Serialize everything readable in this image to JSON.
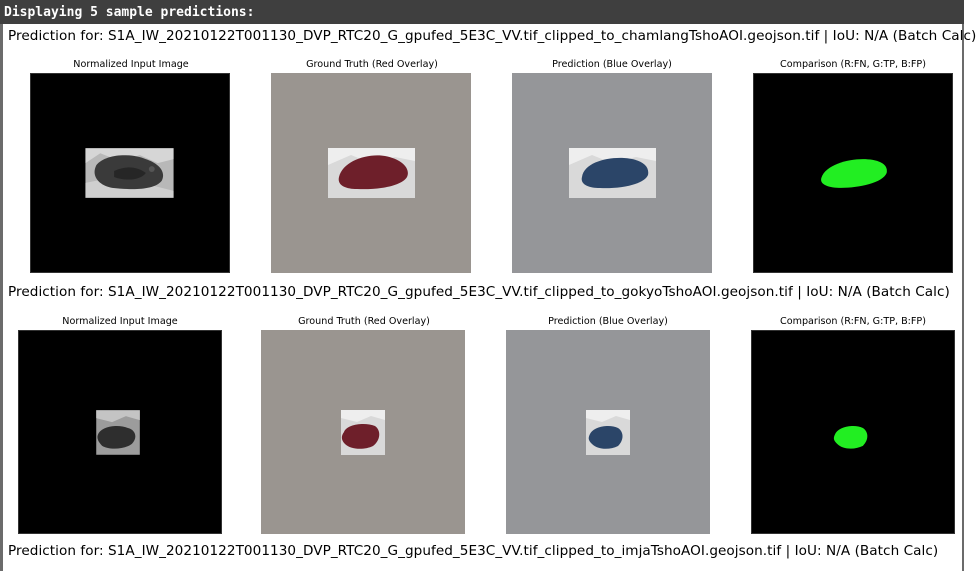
{
  "console": {
    "header": "Displaying 5 sample predictions:"
  },
  "predictions": [
    {
      "title": "Prediction for: S1A_IW_20210122T001130_DVP_RTC20_G_gpufed_5E3C_VV.tif_clipped_to_chamlangTshoAOI.geojson.tif | IoU: N/A (Batch Calc)",
      "panels": [
        {
          "label": "Normalized Input Image"
        },
        {
          "label": "Ground Truth (Red Overlay)"
        },
        {
          "label": "Prediction (Blue Overlay)"
        },
        {
          "label": "Comparison (R:FN, G:TP, B:FP)"
        }
      ]
    },
    {
      "title": "Prediction for: S1A_IW_20210122T001130_DVP_RTC20_G_gpufed_5E3C_VV.tif_clipped_to_gokyoTshoAOI.geojson.tif | IoU: N/A (Batch Calc)",
      "panels": [
        {
          "label": "Normalized Input Image"
        },
        {
          "label": "Ground Truth (Red Overlay)"
        },
        {
          "label": "Prediction (Blue Overlay)"
        },
        {
          "label": "Comparison (R:FN, G:TP, B:FP)"
        }
      ]
    },
    {
      "title": "Prediction for: S1A_IW_20210122T001130_DVP_RTC20_G_gpufed_5E3C_VV.tif_clipped_to_imjaTshoAOI.geojson.tif | IoU: N/A (Batch Calc)"
    }
  ],
  "colors": {
    "input_background": "#000000",
    "ground_truth_background": "#9a9590",
    "prediction_background": "#959699",
    "comparison_background": "#000000",
    "ground_truth_overlay": "#6e1f2a",
    "prediction_overlay": "#2b4568",
    "true_positive": "#22ee22"
  }
}
